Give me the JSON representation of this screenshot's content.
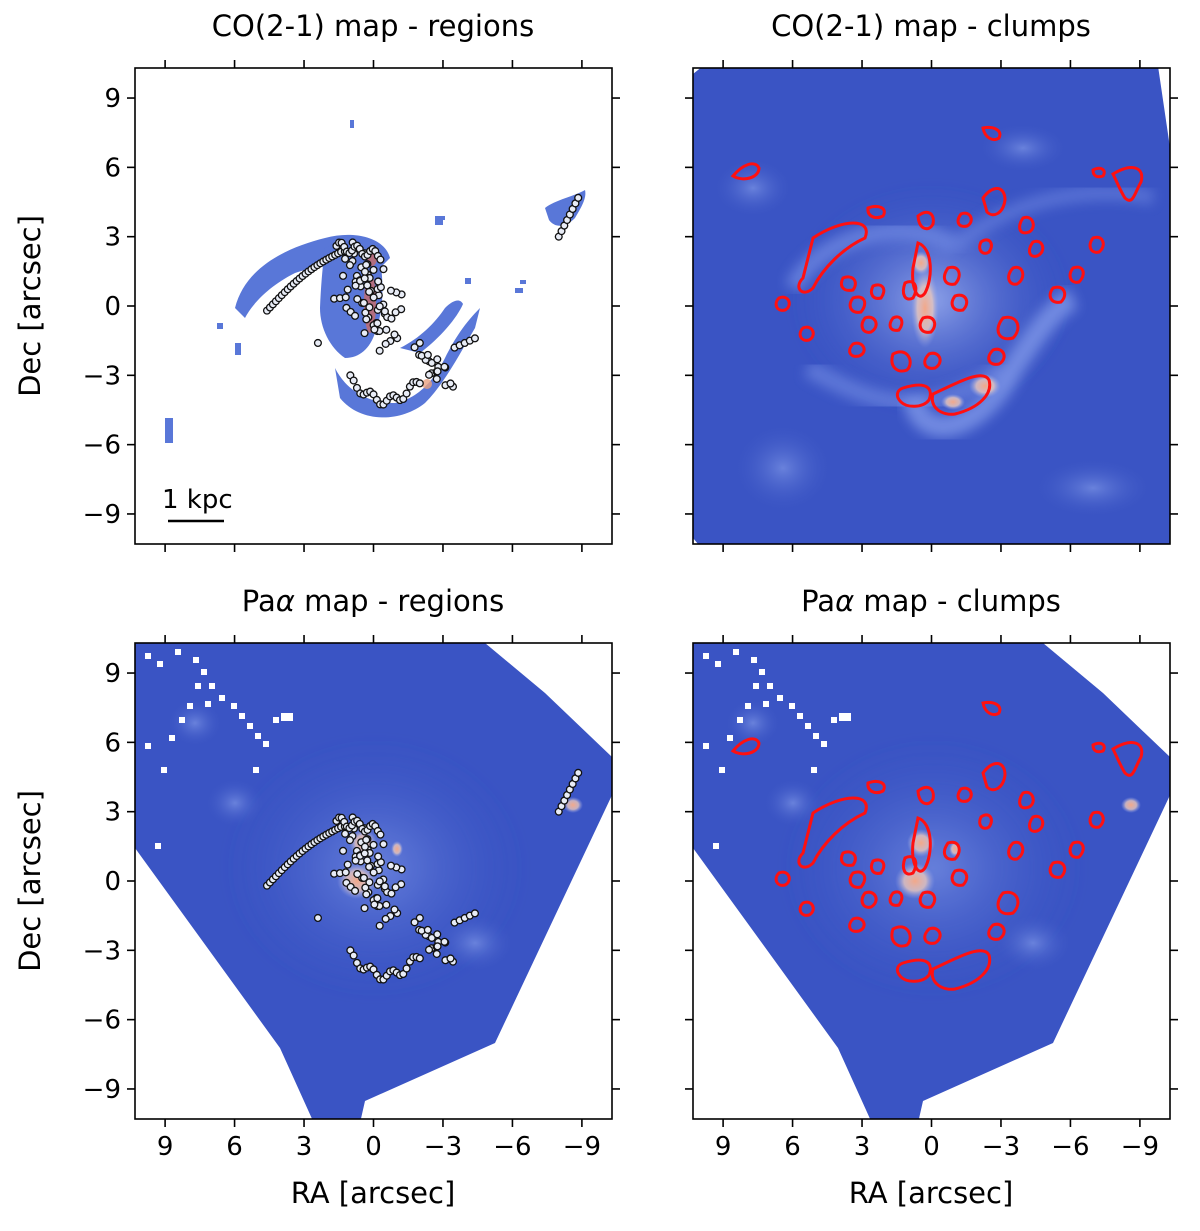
{
  "figure": {
    "panels": [
      {
        "id": "co-regions",
        "title": "CO(2-1) map - regions",
        "map": "co",
        "overlay": "regions",
        "show_ylabel": true,
        "show_xlabel": false,
        "show_yticklabels": true,
        "show_xticklabels": false,
        "scalebar": true
      },
      {
        "id": "co-clumps",
        "title": "CO(2-1) map - clumps",
        "map": "co",
        "overlay": "clumps",
        "show_ylabel": false,
        "show_xlabel": false,
        "show_yticklabels": false,
        "show_xticklabels": false,
        "scalebar": false
      },
      {
        "id": "paa-regions",
        "title": "Pa",
        "title_greek": "α",
        "title_rest": " map - regions",
        "map": "paa",
        "overlay": "regions",
        "show_ylabel": true,
        "show_xlabel": true,
        "show_yticklabels": true,
        "show_xticklabels": true,
        "scalebar": false
      },
      {
        "id": "paa-clumps",
        "title": "Pa",
        "title_greek": "α",
        "title_rest": " map - clumps",
        "map": "paa",
        "overlay": "clumps",
        "show_ylabel": false,
        "show_xlabel": true,
        "show_yticklabels": false,
        "show_xticklabels": true,
        "scalebar": false
      }
    ],
    "xlabel": "RA [arcsec]",
    "ylabel": "Dec [arcsec]",
    "xticks": [
      "9",
      "6",
      "3",
      "0",
      "−3",
      "−6",
      "−9"
    ],
    "yticks": [
      "9",
      "6",
      "3",
      "0",
      "−3",
      "−6",
      "−9"
    ],
    "xtick_values": [
      9,
      6,
      3,
      0,
      -3,
      -6,
      -9
    ],
    "ytick_values": [
      9,
      6,
      3,
      0,
      -3,
      -6,
      -9
    ],
    "scalebar_label": "1 kpc",
    "colors": {
      "map_base": "#3a54c4",
      "map_light": "#8fa5ee",
      "map_peak": "#f4b79a",
      "clump_contour": "#ff1010",
      "region_marker_edge": "#111111"
    }
  }
}
